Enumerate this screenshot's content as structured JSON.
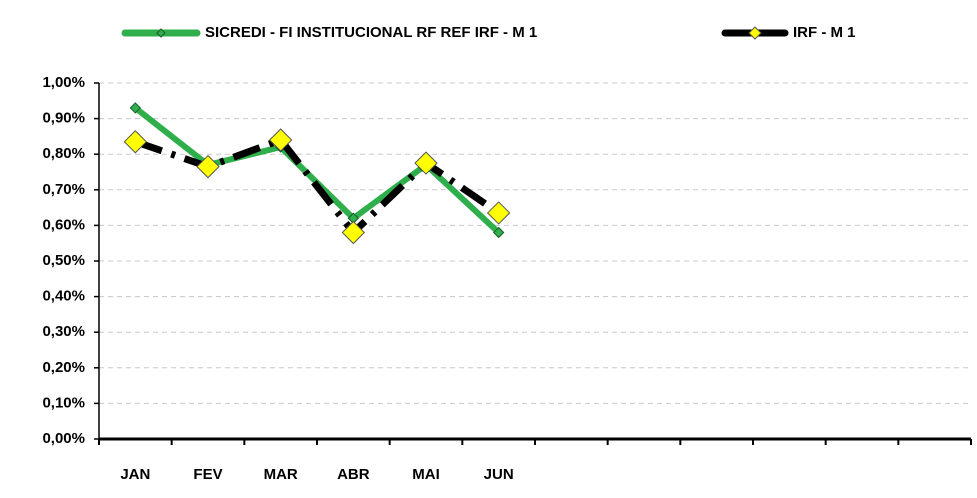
{
  "chart_data": {
    "type": "line",
    "categories": [
      "JAN",
      "FEV",
      "MAR",
      "ABR",
      "MAI",
      "JUN",
      null,
      null,
      null,
      null,
      null,
      null
    ],
    "series": [
      {
        "name": "SICREDI - FI INSTITUCIONAL RF REF IRF - M 1",
        "color": "#2eaf4b",
        "values": [
          0.93,
          0.77,
          0.82,
          0.62,
          0.77,
          0.58,
          null,
          null,
          null,
          null,
          null,
          null
        ]
      },
      {
        "name": "IRF - M 1",
        "color": "#000000",
        "marker_color": "#ffff00",
        "values": [
          0.835,
          0.765,
          0.84,
          0.58,
          0.775,
          0.635,
          null,
          null,
          null,
          null,
          null,
          null
        ]
      }
    ],
    "ylim": [
      0,
      1
    ],
    "yticks": [
      {
        "value": 0,
        "label": "0,00%"
      },
      {
        "value": 0.1,
        "label": "0,10%"
      },
      {
        "value": 0.2,
        "label": "0,20%"
      },
      {
        "value": 0.3,
        "label": "0,30%"
      },
      {
        "value": 0.4,
        "label": "0,40%"
      },
      {
        "value": 0.5,
        "label": "0,50%"
      },
      {
        "value": 0.6,
        "label": "0,60%"
      },
      {
        "value": 0.7,
        "label": "0,70%"
      },
      {
        "value": 0.8,
        "label": "0,80%"
      },
      {
        "value": 0.9,
        "label": "0,90%"
      },
      {
        "value": 1,
        "label": "1,00%"
      }
    ],
    "grid": true,
    "legend": "top"
  }
}
